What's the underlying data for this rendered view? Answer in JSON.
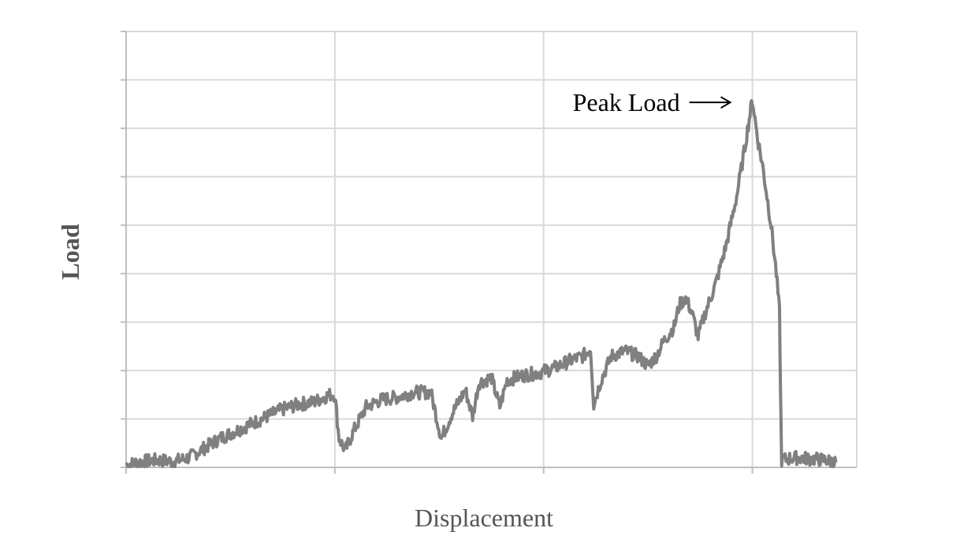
{
  "chart_data": {
    "type": "line",
    "title": "",
    "xlabel": "Displacement",
    "ylabel": "Load",
    "x_tick_labels": false,
    "y_tick_labels": false,
    "xlim": [
      0,
      7
    ],
    "ylim": [
      0,
      9
    ],
    "grid": true,
    "legend": "none",
    "colors": {
      "series": "#808080",
      "grid": "#d9d9d9",
      "axis": "#bfbfbf",
      "text": "#555555"
    },
    "annotation": {
      "text": "Peak Load",
      "arrow": "right",
      "target": [
        6.0,
        7.6
      ]
    },
    "series": [
      {
        "points": [
          [
            0.0,
            0.05
          ],
          [
            0.15,
            0.12
          ],
          [
            0.3,
            0.15
          ],
          [
            0.45,
            0.12
          ],
          [
            0.6,
            0.2
          ],
          [
            0.75,
            0.4
          ],
          [
            0.9,
            0.6
          ],
          [
            1.05,
            0.75
          ],
          [
            1.2,
            0.9
          ],
          [
            1.35,
            1.05
          ],
          [
            1.5,
            1.2
          ],
          [
            1.65,
            1.3
          ],
          [
            1.8,
            1.35
          ],
          [
            1.95,
            1.5
          ],
          [
            2.0,
            1.5
          ],
          [
            2.04,
            0.6
          ],
          [
            2.1,
            0.35
          ],
          [
            2.18,
            0.75
          ],
          [
            2.3,
            1.25
          ],
          [
            2.45,
            1.4
          ],
          [
            2.6,
            1.45
          ],
          [
            2.75,
            1.55
          ],
          [
            2.92,
            1.55
          ],
          [
            3.02,
            0.6
          ],
          [
            3.12,
            1.1
          ],
          [
            3.25,
            1.6
          ],
          [
            3.32,
            1.05
          ],
          [
            3.38,
            1.75
          ],
          [
            3.5,
            1.85
          ],
          [
            3.58,
            1.25
          ],
          [
            3.65,
            1.8
          ],
          [
            3.8,
            1.9
          ],
          [
            3.95,
            1.95
          ],
          [
            4.1,
            2.05
          ],
          [
            4.25,
            2.2
          ],
          [
            4.38,
            2.3
          ],
          [
            4.45,
            2.45
          ],
          [
            4.48,
            1.3
          ],
          [
            4.55,
            1.8
          ],
          [
            4.65,
            2.3
          ],
          [
            4.78,
            2.4
          ],
          [
            4.9,
            2.3
          ],
          [
            5.0,
            2.1
          ],
          [
            5.08,
            2.3
          ],
          [
            5.15,
            2.6
          ],
          [
            5.25,
            2.9
          ],
          [
            5.3,
            3.35
          ],
          [
            5.36,
            3.5
          ],
          [
            5.42,
            3.2
          ],
          [
            5.48,
            2.7
          ],
          [
            5.55,
            3.2
          ],
          [
            5.65,
            3.8
          ],
          [
            5.75,
            4.6
          ],
          [
            5.85,
            5.6
          ],
          [
            5.92,
            6.5
          ],
          [
            5.97,
            7.2
          ],
          [
            6.0,
            7.6
          ],
          [
            6.05,
            6.8
          ],
          [
            6.1,
            6.2
          ],
          [
            6.18,
            5.0
          ],
          [
            6.23,
            4.0
          ],
          [
            6.26,
            3.2
          ],
          [
            6.27,
            1.5
          ],
          [
            6.28,
            0.15
          ],
          [
            6.4,
            0.2
          ],
          [
            6.55,
            0.18
          ],
          [
            6.7,
            0.15
          ],
          [
            6.8,
            0.1
          ]
        ]
      }
    ]
  }
}
